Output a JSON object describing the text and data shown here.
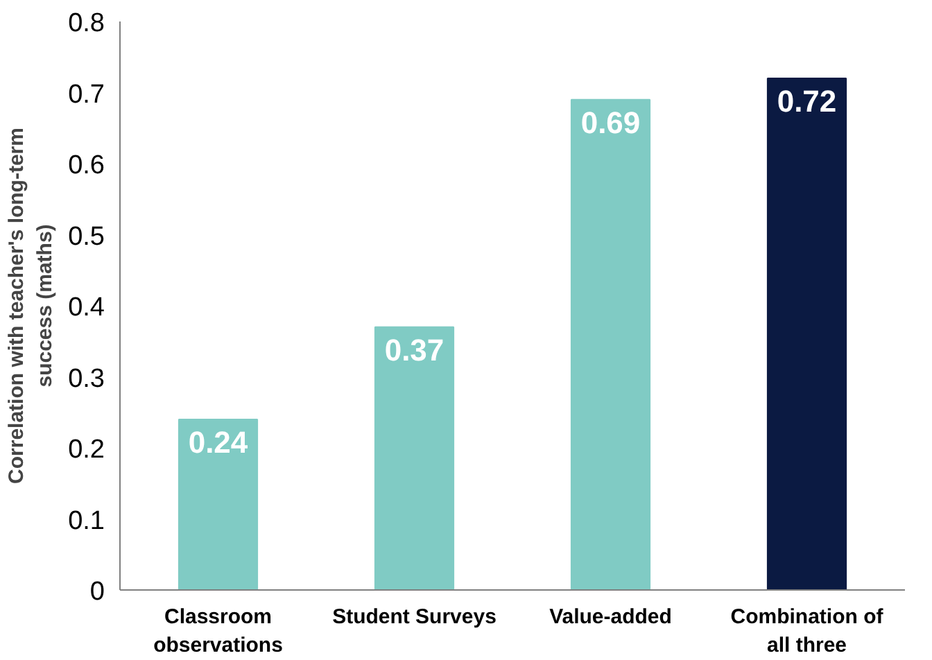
{
  "chart_data": {
    "type": "bar",
    "ylabel": "Correlation with teacher's long-term\nsuccess (maths)",
    "categories": [
      "Classroom\nobservations",
      "Student Surveys",
      "Value-added",
      "Combination of\nall three"
    ],
    "values": [
      0.24,
      0.37,
      0.69,
      0.72
    ],
    "colors": [
      "#80cbc4",
      "#80cbc4",
      "#80cbc4",
      "#0b1a42"
    ],
    "data_labels": true,
    "ylim": [
      0,
      0.8
    ],
    "yticks": [
      0,
      0.1,
      0.2,
      0.3,
      0.4,
      0.5,
      0.6,
      0.7,
      0.8
    ],
    "grid": false
  }
}
